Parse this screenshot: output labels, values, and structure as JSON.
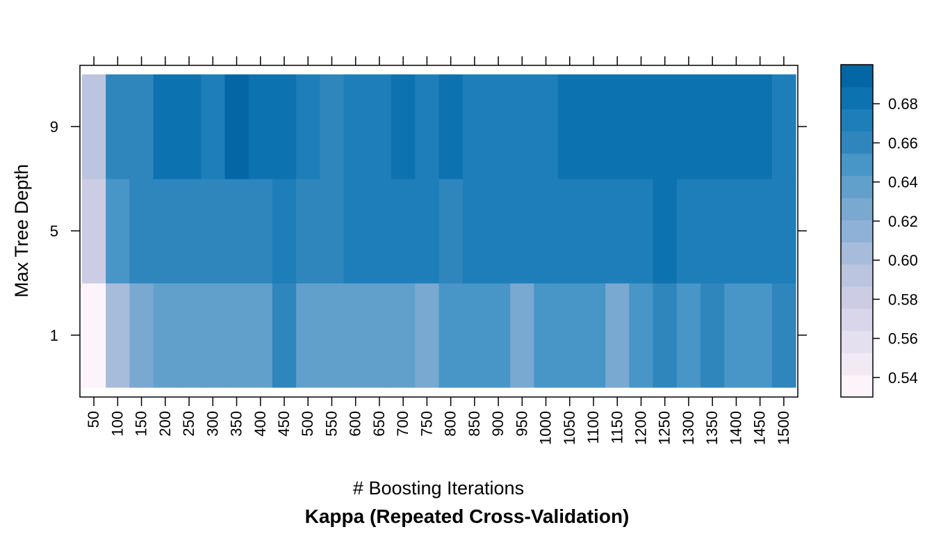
{
  "chart_data": {
    "type": "heatmap",
    "title": "Kappa (Repeated Cross-Validation)",
    "xlabel": "# Boosting Iterations",
    "ylabel": "Max Tree Depth",
    "x": [
      "50",
      "100",
      "150",
      "200",
      "250",
      "300",
      "350",
      "400",
      "450",
      "500",
      "550",
      "600",
      "650",
      "700",
      "750",
      "800",
      "850",
      "900",
      "950",
      "1000",
      "1050",
      "1100",
      "1150",
      "1200",
      "1250",
      "1300",
      "1350",
      "1400",
      "1450",
      "1500"
    ],
    "y": [
      "1",
      "5",
      "9"
    ],
    "values": [
      [
        0.535,
        0.6,
        0.625,
        0.64,
        0.64,
        0.64,
        0.64,
        0.64,
        0.655,
        0.64,
        0.64,
        0.64,
        0.64,
        0.64,
        0.63,
        0.645,
        0.645,
        0.645,
        0.63,
        0.645,
        0.645,
        0.645,
        0.63,
        0.645,
        0.655,
        0.645,
        0.655,
        0.645,
        0.645,
        0.655
      ],
      [
        0.58,
        0.645,
        0.66,
        0.66,
        0.66,
        0.66,
        0.66,
        0.66,
        0.67,
        0.66,
        0.66,
        0.67,
        0.67,
        0.67,
        0.67,
        0.66,
        0.67,
        0.67,
        0.67,
        0.67,
        0.67,
        0.67,
        0.67,
        0.67,
        0.68,
        0.67,
        0.67,
        0.67,
        0.67,
        0.67
      ],
      [
        0.595,
        0.66,
        0.66,
        0.68,
        0.68,
        0.67,
        0.69,
        0.68,
        0.68,
        0.67,
        0.66,
        0.67,
        0.67,
        0.68,
        0.67,
        0.68,
        0.67,
        0.67,
        0.67,
        0.67,
        0.68,
        0.68,
        0.68,
        0.68,
        0.68,
        0.68,
        0.68,
        0.68,
        0.68,
        0.67
      ]
    ],
    "colorbar": {
      "range": [
        0.53,
        0.7
      ],
      "ticks": [
        "0.54",
        "0.56",
        "0.58",
        "0.60",
        "0.62",
        "0.64",
        "0.66",
        "0.68"
      ],
      "tick_values": [
        0.54,
        0.56,
        0.58,
        0.6,
        0.62,
        0.64,
        0.66,
        0.68
      ],
      "colors": [
        "#FCF4FA",
        "#F1EAF5",
        "#E5E0F0",
        "#D9D6EB",
        "#CCCDE4",
        "#BBC5DF",
        "#A7BCDB",
        "#8EB1D7",
        "#79A8D1",
        "#62A0CC",
        "#4895C7",
        "#2F86BD",
        "#1E7EBA",
        "#0C72B0",
        "#0466A4"
      ]
    }
  }
}
